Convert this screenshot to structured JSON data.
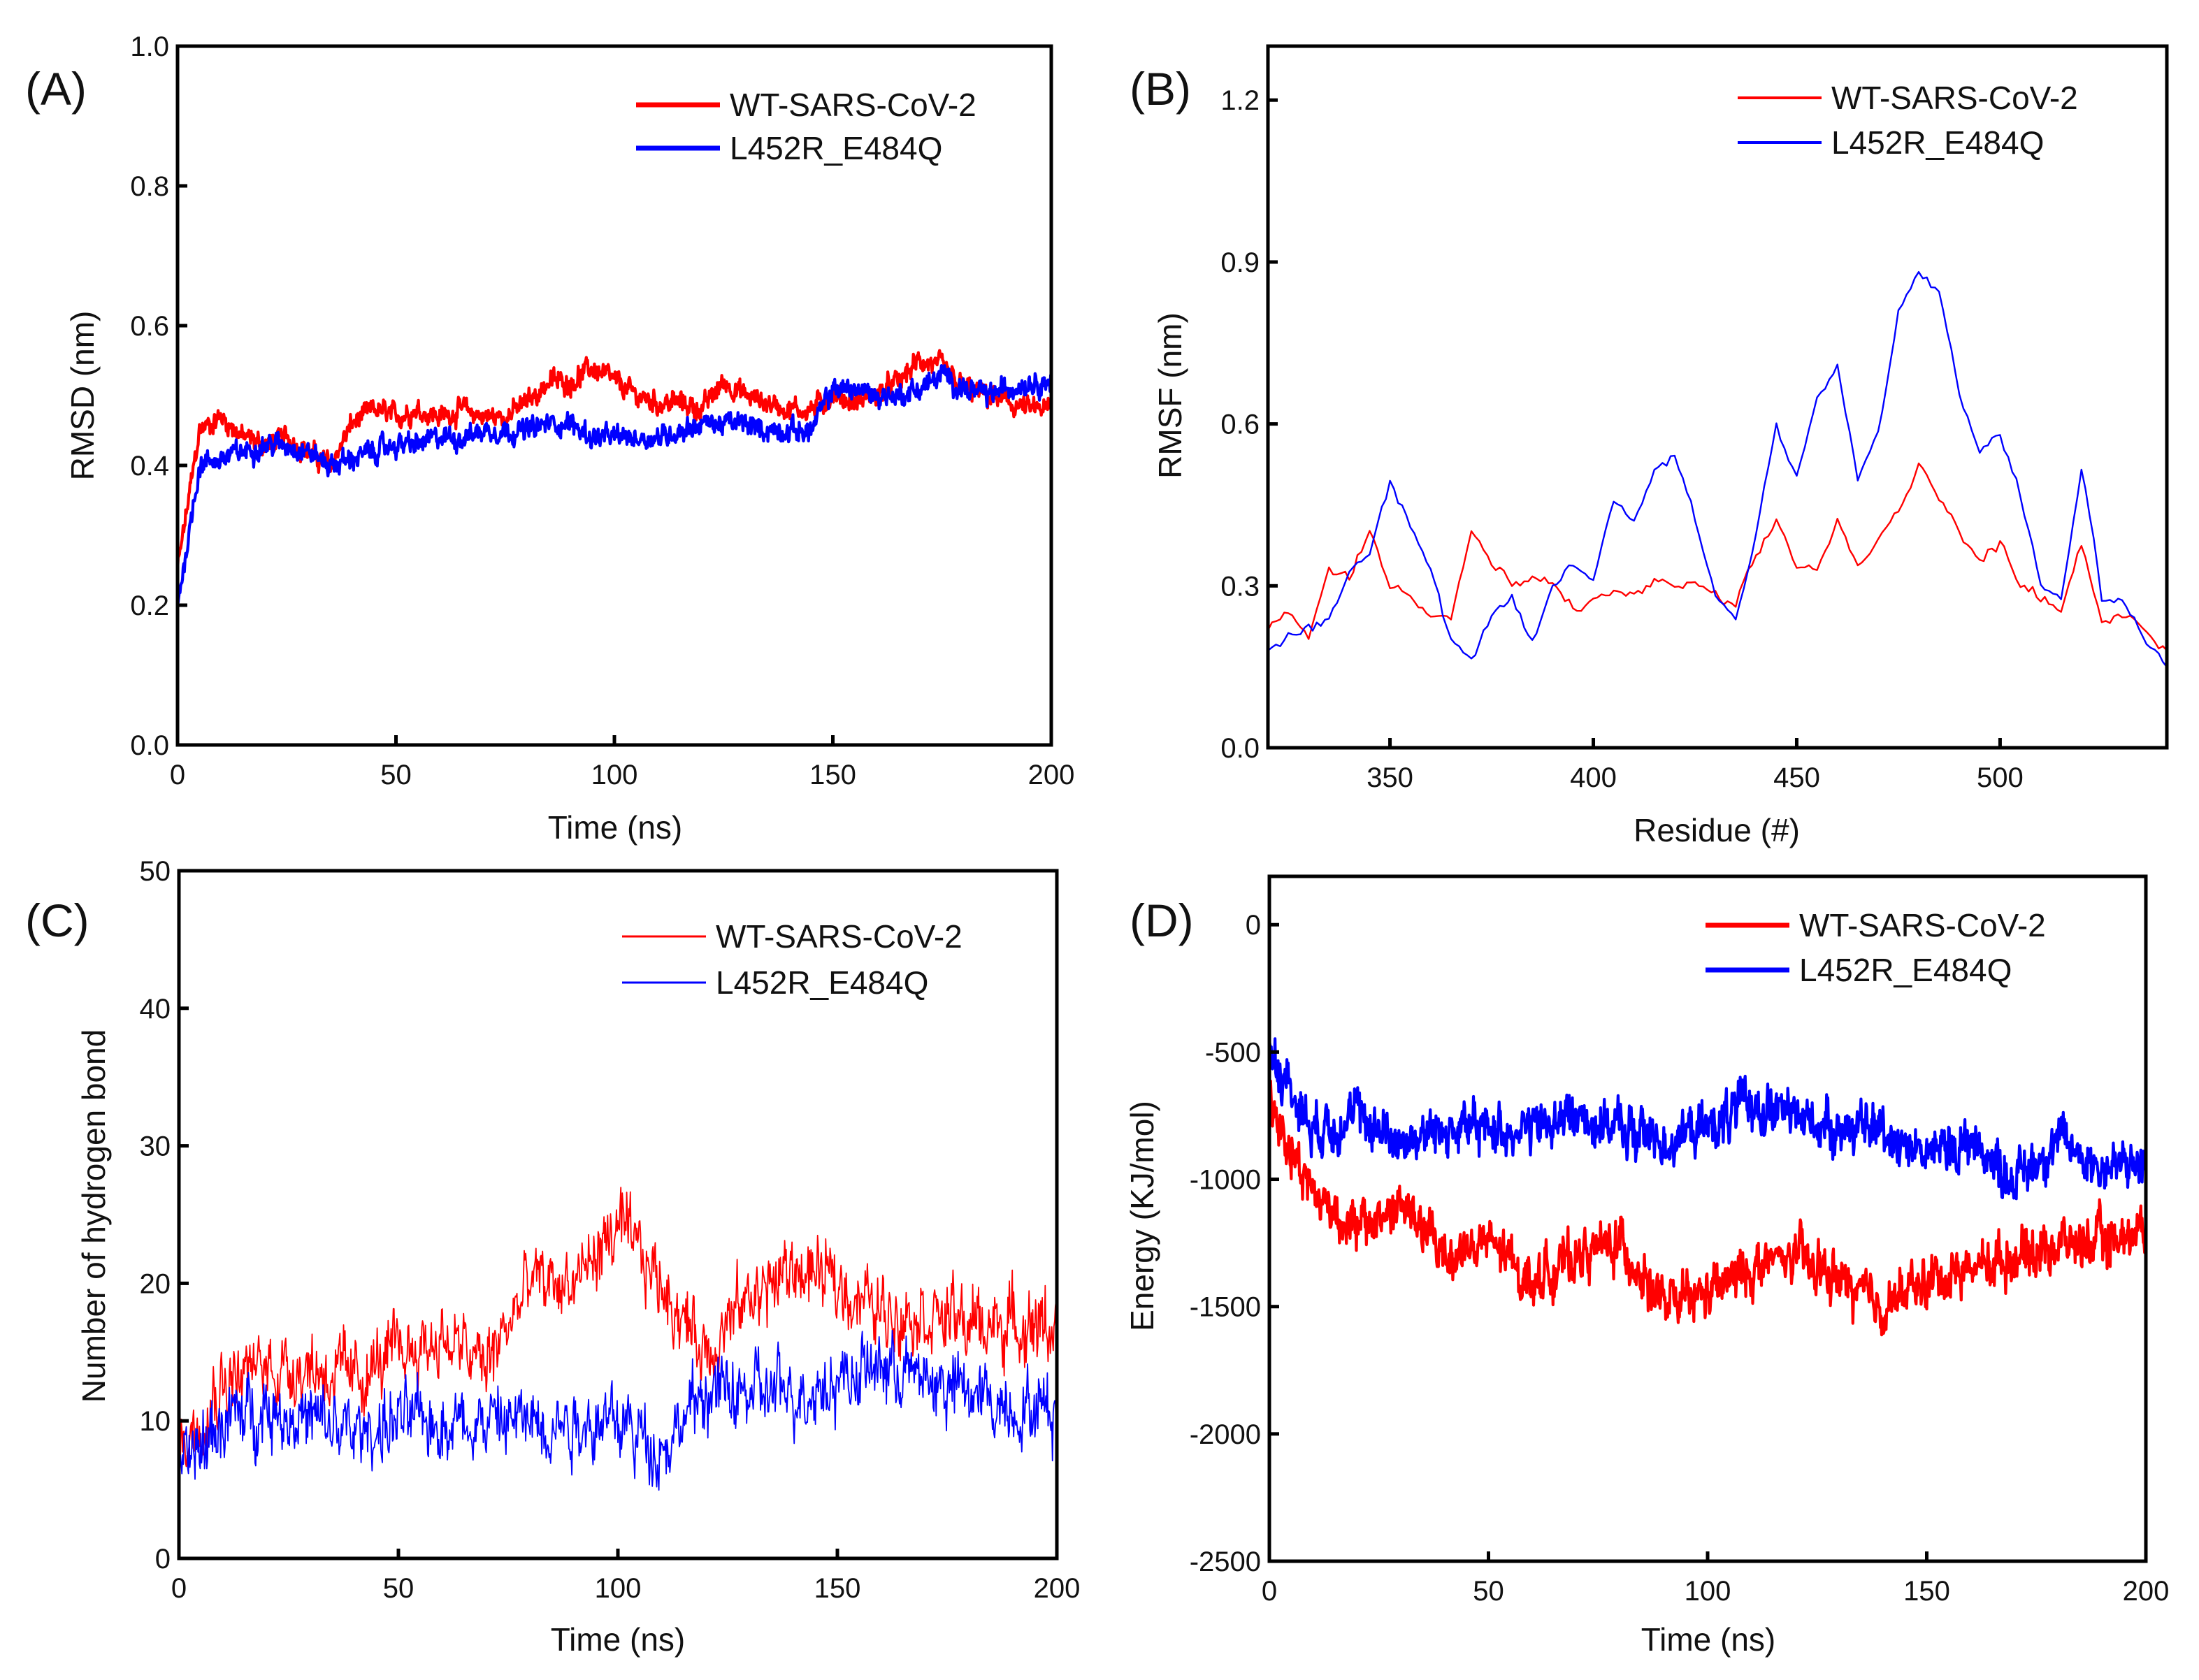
{
  "colors": {
    "wt": "#ff0000",
    "mut": "#0000ff",
    "axis": "#000000"
  },
  "chart_data": [
    {
      "type": "line",
      "panel_label": "(A)",
      "xlabel": "Time (ns)",
      "ylabel": "RMSD (nm)",
      "xlim": [
        0,
        200
      ],
      "ylim": [
        0,
        1.0
      ],
      "xticks": [
        "0",
        "50",
        "100",
        "150",
        "200"
      ],
      "xtick_values": [
        0,
        50,
        100,
        150,
        200
      ],
      "yticks": [
        "0.0",
        "0.2",
        "0.4",
        "0.6",
        "0.8",
        "1.0"
      ],
      "ytick_values": [
        0,
        0.2,
        0.4,
        0.6,
        0.8,
        1.0
      ],
      "legend_position": "top-right",
      "noise": 0.018,
      "samples": 1400,
      "series": [
        {
          "name": "WT-SARS-CoV-2",
          "color_key": "wt",
          "x": [
            0,
            5,
            10,
            15,
            20,
            25,
            30,
            35,
            40,
            45,
            50,
            55,
            60,
            65,
            70,
            75,
            80,
            85,
            90,
            95,
            100,
            105,
            110,
            115,
            120,
            125,
            130,
            135,
            140,
            145,
            150,
            155,
            160,
            165,
            170,
            175,
            180,
            185,
            190,
            195,
            200
          ],
          "values": [
            0.25,
            0.45,
            0.47,
            0.44,
            0.43,
            0.44,
            0.42,
            0.4,
            0.46,
            0.48,
            0.47,
            0.48,
            0.47,
            0.48,
            0.47,
            0.47,
            0.49,
            0.52,
            0.52,
            0.54,
            0.52,
            0.5,
            0.49,
            0.49,
            0.48,
            0.52,
            0.5,
            0.49,
            0.48,
            0.48,
            0.5,
            0.49,
            0.5,
            0.52,
            0.55,
            0.54,
            0.51,
            0.5,
            0.49,
            0.48,
            0.48
          ]
        },
        {
          "name": "L452R_E484Q",
          "color_key": "mut",
          "x": [
            0,
            5,
            10,
            15,
            20,
            25,
            30,
            35,
            40,
            45,
            50,
            55,
            60,
            65,
            70,
            75,
            80,
            85,
            90,
            95,
            100,
            105,
            110,
            115,
            120,
            125,
            130,
            135,
            140,
            145,
            150,
            155,
            160,
            165,
            170,
            175,
            180,
            185,
            190,
            195,
            200
          ],
          "values": [
            0.2,
            0.4,
            0.41,
            0.42,
            0.43,
            0.43,
            0.42,
            0.4,
            0.41,
            0.42,
            0.43,
            0.43,
            0.44,
            0.44,
            0.45,
            0.45,
            0.45,
            0.46,
            0.46,
            0.44,
            0.44,
            0.44,
            0.44,
            0.45,
            0.46,
            0.46,
            0.46,
            0.45,
            0.45,
            0.45,
            0.51,
            0.51,
            0.5,
            0.5,
            0.51,
            0.53,
            0.51,
            0.5,
            0.51,
            0.52,
            0.52
          ]
        }
      ]
    },
    {
      "type": "line",
      "panel_label": "(B)",
      "xlabel": "Residue (#)",
      "ylabel": "RMSF (nm)",
      "xlim": [
        320,
        541
      ],
      "ylim": [
        0,
        1.3
      ],
      "xticks": [
        "350",
        "400",
        "450",
        "500"
      ],
      "xtick_values": [
        350,
        400,
        450,
        500
      ],
      "yticks": [
        "0.0",
        "0.3",
        "0.6",
        "0.9",
        "1.2"
      ],
      "ytick_values": [
        0,
        0.3,
        0.6,
        0.9,
        1.2
      ],
      "legend_position": "top-right",
      "noise": 0.012,
      "samples": 221,
      "series": [
        {
          "name": "WT-SARS-CoV-2",
          "color_key": "wt",
          "x": [
            320,
            325,
            330,
            335,
            340,
            345,
            350,
            355,
            360,
            365,
            370,
            375,
            380,
            385,
            390,
            395,
            400,
            405,
            410,
            415,
            420,
            425,
            430,
            435,
            440,
            445,
            450,
            455,
            460,
            465,
            470,
            475,
            480,
            485,
            490,
            495,
            500,
            505,
            510,
            515,
            520,
            525,
            530,
            535,
            540
          ],
          "values": [
            0.22,
            0.25,
            0.2,
            0.33,
            0.32,
            0.4,
            0.3,
            0.29,
            0.25,
            0.24,
            0.4,
            0.34,
            0.3,
            0.31,
            0.3,
            0.26,
            0.27,
            0.29,
            0.28,
            0.31,
            0.3,
            0.3,
            0.28,
            0.26,
            0.35,
            0.42,
            0.34,
            0.33,
            0.42,
            0.33,
            0.38,
            0.44,
            0.53,
            0.47,
            0.4,
            0.34,
            0.38,
            0.31,
            0.28,
            0.26,
            0.38,
            0.24,
            0.24,
            0.22,
            0.18
          ]
        },
        {
          "name": "L452R_E484Q",
          "color_key": "mut",
          "x": [
            320,
            325,
            330,
            335,
            340,
            345,
            350,
            355,
            360,
            365,
            370,
            375,
            380,
            385,
            390,
            395,
            400,
            405,
            410,
            415,
            420,
            425,
            430,
            435,
            440,
            445,
            450,
            455,
            460,
            465,
            470,
            475,
            480,
            485,
            490,
            495,
            500,
            505,
            510,
            515,
            520,
            525,
            530,
            535,
            540
          ],
          "values": [
            0.18,
            0.21,
            0.22,
            0.24,
            0.33,
            0.36,
            0.5,
            0.42,
            0.33,
            0.2,
            0.16,
            0.24,
            0.27,
            0.19,
            0.3,
            0.34,
            0.31,
            0.46,
            0.42,
            0.52,
            0.54,
            0.43,
            0.28,
            0.24,
            0.4,
            0.6,
            0.5,
            0.65,
            0.7,
            0.5,
            0.58,
            0.8,
            0.88,
            0.85,
            0.65,
            0.55,
            0.58,
            0.47,
            0.3,
            0.27,
            0.52,
            0.28,
            0.28,
            0.2,
            0.16
          ]
        }
      ]
    },
    {
      "type": "line",
      "panel_label": "(C)",
      "xlabel": "Time (ns)",
      "ylabel": "Number of hydrogen bond",
      "xlim": [
        0,
        200
      ],
      "ylim": [
        0,
        50
      ],
      "xticks": [
        "0",
        "50",
        "100",
        "150",
        "200"
      ],
      "xtick_values": [
        0,
        50,
        100,
        150,
        200
      ],
      "yticks": [
        "0",
        "10",
        "20",
        "30",
        "40",
        "50"
      ],
      "ytick_values": [
        0,
        10,
        20,
        30,
        40,
        50
      ],
      "legend_position": "top-right",
      "noise": 3.0,
      "samples": 1200,
      "series": [
        {
          "name": "WT-SARS-CoV-2",
          "color_key": "wt",
          "x": [
            0,
            10,
            20,
            30,
            40,
            50,
            60,
            70,
            80,
            90,
            100,
            110,
            120,
            130,
            140,
            150,
            160,
            170,
            180,
            190,
            200
          ],
          "values": [
            8,
            13,
            14,
            14,
            13,
            15,
            16,
            14,
            20,
            20,
            24,
            20,
            15,
            19,
            21,
            20,
            18,
            18,
            17,
            17,
            17
          ]
        },
        {
          "name": "L452R_E484Q",
          "color_key": "mut",
          "x": [
            0,
            10,
            20,
            30,
            40,
            50,
            60,
            70,
            80,
            90,
            100,
            110,
            120,
            130,
            140,
            150,
            160,
            170,
            180,
            190,
            200
          ],
          "values": [
            6,
            10,
            11,
            10,
            9,
            10,
            10,
            10,
            10,
            10,
            10,
            8,
            12,
            12,
            12,
            13,
            14,
            13,
            12,
            11,
            11
          ]
        }
      ]
    },
    {
      "type": "line",
      "panel_label": "(D)",
      "xlabel": "Time (ns)",
      "ylabel": "Energy (KJ/mol)",
      "xlim": [
        0,
        200
      ],
      "ylim": [
        -2500,
        190
      ],
      "xticks": [
        "0",
        "50",
        "100",
        "150",
        "200"
      ],
      "xtick_values": [
        0,
        50,
        100,
        150,
        200
      ],
      "yticks": [
        "-2500",
        "-2000",
        "-1500",
        "-1000",
        "-500",
        "0"
      ],
      "ytick_values": [
        -2500,
        -2000,
        -1500,
        -1000,
        -500,
        0
      ],
      "legend_position": "top-right",
      "noise": 110,
      "samples": 1400,
      "series": [
        {
          "name": "WT-SARS-CoV-2",
          "color_key": "wt",
          "x": [
            0,
            10,
            20,
            30,
            40,
            50,
            60,
            70,
            80,
            90,
            100,
            110,
            120,
            130,
            140,
            150,
            160,
            170,
            180,
            190,
            200
          ],
          "values": [
            -700,
            -1050,
            -1200,
            -1100,
            -1300,
            -1250,
            -1400,
            -1300,
            -1250,
            -1500,
            -1450,
            -1350,
            -1300,
            -1400,
            -1500,
            -1400,
            -1350,
            -1300,
            -1250,
            -1250,
            -1200
          ]
        },
        {
          "name": "L452R_E484Q",
          "color_key": "mut",
          "x": [
            0,
            10,
            20,
            30,
            40,
            50,
            60,
            70,
            80,
            90,
            100,
            110,
            120,
            130,
            140,
            150,
            160,
            170,
            180,
            190,
            200
          ],
          "values": [
            -500,
            -800,
            -750,
            -850,
            -800,
            -800,
            -800,
            -750,
            -800,
            -850,
            -800,
            -700,
            -750,
            -800,
            -800,
            -900,
            -850,
            -1000,
            -850,
            -950,
            -950
          ]
        }
      ]
    }
  ]
}
